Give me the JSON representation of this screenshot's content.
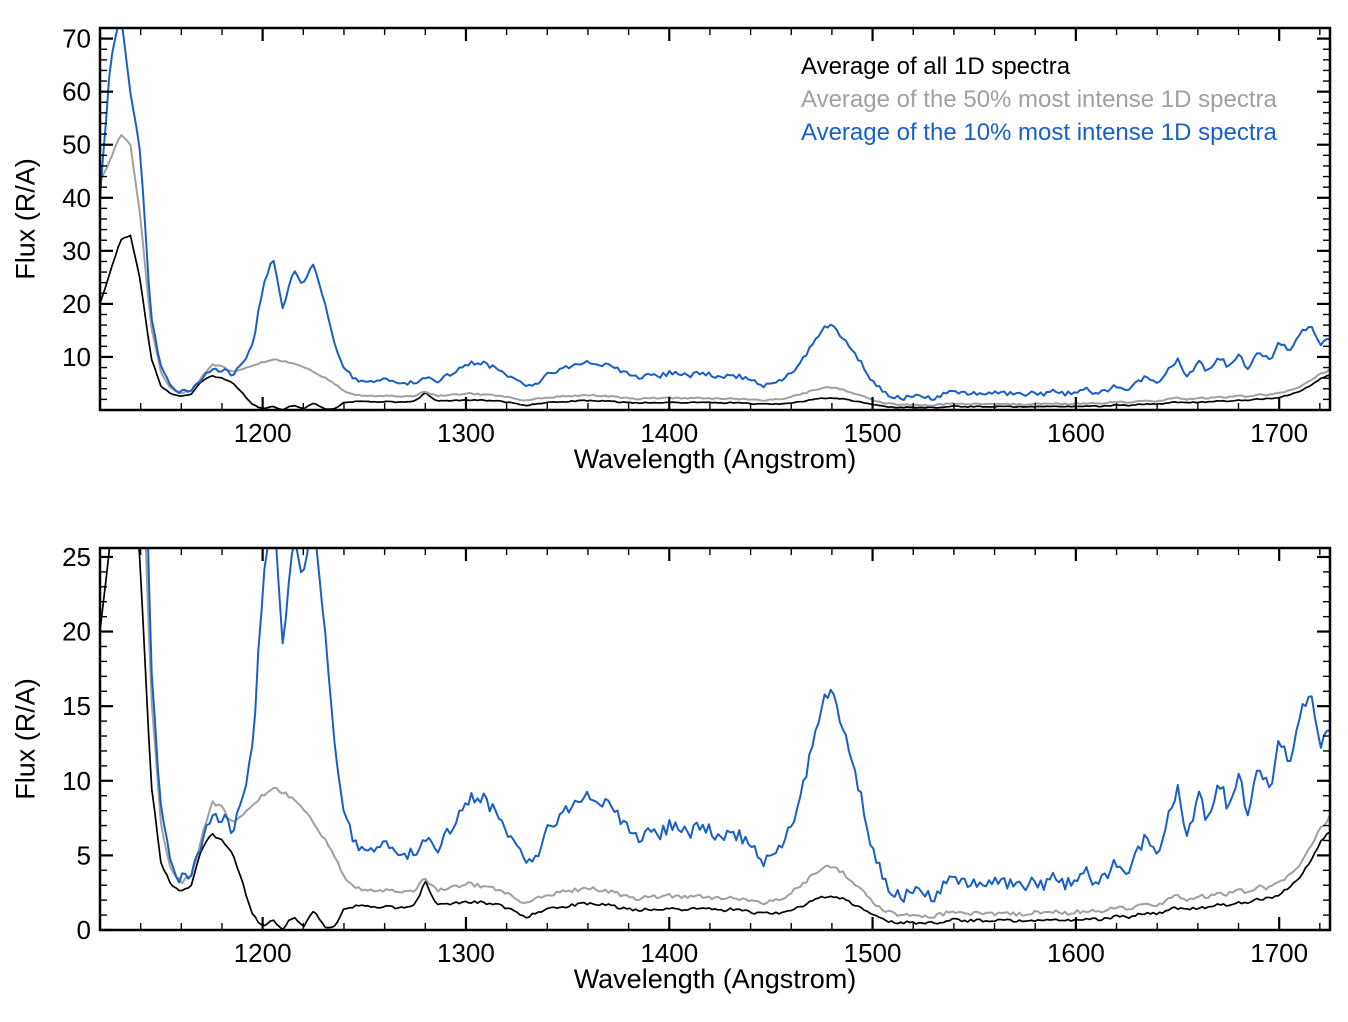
{
  "chart_data": {
    "type": "line",
    "title": "",
    "xlabel": "Wavelength (Angstrom)",
    "ylabel": "Flux (R/A)",
    "legend_position": "top-right",
    "grid": false,
    "x": [
      1120,
      1125,
      1130,
      1135,
      1140,
      1145,
      1150,
      1155,
      1160,
      1165,
      1170,
      1175,
      1180,
      1185,
      1190,
      1195,
      1200,
      1205,
      1210,
      1215,
      1220,
      1225,
      1230,
      1235,
      1240,
      1245,
      1250,
      1255,
      1260,
      1265,
      1270,
      1275,
      1280,
      1285,
      1290,
      1295,
      1300,
      1305,
      1310,
      1315,
      1320,
      1325,
      1330,
      1335,
      1340,
      1345,
      1350,
      1355,
      1360,
      1365,
      1370,
      1375,
      1380,
      1385,
      1390,
      1395,
      1400,
      1405,
      1410,
      1415,
      1420,
      1425,
      1430,
      1435,
      1440,
      1445,
      1450,
      1455,
      1460,
      1465,
      1470,
      1475,
      1480,
      1485,
      1490,
      1495,
      1500,
      1505,
      1510,
      1515,
      1520,
      1525,
      1530,
      1535,
      1540,
      1545,
      1550,
      1555,
      1560,
      1565,
      1570,
      1575,
      1580,
      1585,
      1590,
      1595,
      1600,
      1605,
      1610,
      1615,
      1620,
      1625,
      1630,
      1635,
      1640,
      1645,
      1650,
      1655,
      1660,
      1665,
      1670,
      1675,
      1680,
      1685,
      1690,
      1695,
      1700,
      1705,
      1710,
      1715,
      1720,
      1725
    ],
    "series": [
      {
        "key": "avg-all",
        "name": "Average of all 1D spectra",
        "color": "#000000",
        "noise": 0.1,
        "values": [
          20,
          26,
          32,
          33,
          24,
          10,
          4.5,
          3,
          2.6,
          3,
          5.5,
          6.4,
          6.1,
          5.2,
          3.2,
          1,
          0.3,
          0.6,
          0.1,
          0.9,
          0.2,
          1.3,
          0.3,
          0.1,
          1.4,
          1.6,
          1.6,
          1.5,
          1.6,
          1.5,
          1.5,
          1.7,
          3.3,
          1.8,
          1.7,
          1.8,
          1.9,
          1.9,
          1.8,
          1.7,
          1.5,
          1.2,
          0.8,
          1.2,
          1.4,
          1.5,
          1.6,
          1.7,
          1.8,
          1.7,
          1.7,
          1.5,
          1.4,
          1.3,
          1.4,
          1.4,
          1.5,
          1.4,
          1.4,
          1.5,
          1.4,
          1.3,
          1.4,
          1.3,
          1.2,
          1.1,
          1.1,
          1.2,
          1.4,
          1.6,
          1.9,
          2.2,
          2.3,
          2.1,
          1.8,
          1.4,
          1,
          0.7,
          0.55,
          0.5,
          0.5,
          0.5,
          0.45,
          0.6,
          0.7,
          0.6,
          0.65,
          0.6,
          0.6,
          0.65,
          0.6,
          0.6,
          0.65,
          0.6,
          0.7,
          0.6,
          0.7,
          0.75,
          0.7,
          0.75,
          0.9,
          0.85,
          1,
          1.1,
          1.05,
          1.3,
          1.5,
          1.35,
          1.5,
          1.45,
          1.7,
          1.65,
          1.9,
          1.8,
          2.1,
          2.1,
          2.4,
          2.8,
          3.5,
          4.5,
          5.8,
          6.6
        ]
      },
      {
        "key": "avg-50",
        "name": "Average of the 50% most intense 1D spectra",
        "color": "#a0a0a0",
        "noise": 0.13,
        "values": [
          43,
          47,
          52,
          50,
          36,
          16,
          7,
          4,
          3.2,
          3.6,
          6.2,
          8.6,
          8.2,
          7.2,
          7.6,
          8.4,
          9,
          9.6,
          9.2,
          8.8,
          8.2,
          7.2,
          6.2,
          5,
          3.6,
          2.9,
          2.7,
          2.6,
          2.7,
          2.6,
          2.5,
          2.7,
          3.5,
          2.7,
          2.7,
          2.9,
          3.1,
          3,
          2.9,
          2.7,
          2.5,
          2.1,
          1.8,
          2.1,
          2.3,
          2.5,
          2.6,
          2.7,
          2.8,
          2.7,
          2.6,
          2.4,
          2.2,
          2.1,
          2.2,
          2.2,
          2.3,
          2.2,
          2.2,
          2.3,
          2.2,
          2.1,
          2.2,
          2.1,
          2,
          1.8,
          1.9,
          2.1,
          2.5,
          3,
          3.6,
          4.2,
          4.3,
          3.9,
          3.3,
          2.6,
          1.9,
          1.4,
          1.1,
          1,
          1.05,
          0.95,
          0.9,
          1.1,
          1.2,
          1.1,
          1.15,
          1.05,
          1.1,
          1.15,
          1.05,
          1.1,
          1.15,
          1.1,
          1.2,
          1.1,
          1.2,
          1.3,
          1.2,
          1.3,
          1.5,
          1.4,
          1.6,
          1.8,
          1.7,
          2,
          2.3,
          2,
          2.3,
          2.2,
          2.5,
          2.4,
          2.7,
          2.5,
          2.9,
          2.8,
          3.2,
          3.6,
          4.3,
          5.4,
          6.8,
          7.6
        ]
      },
      {
        "key": "avg-10",
        "name": "Average of the 10% most intense 1D spectra",
        "color": "#1a5fc4",
        "noise": 0.45,
        "values": [
          40,
          65,
          75,
          60,
          48,
          18,
          8,
          4.5,
          3.4,
          3.6,
          6,
          8,
          7.5,
          6.8,
          8.5,
          12,
          23,
          29,
          18.5,
          26.5,
          23.5,
          27.5,
          21,
          13,
          8,
          5.8,
          5.5,
          5.2,
          5.6,
          5.2,
          4.8,
          5.2,
          6.2,
          5.2,
          6.4,
          7.4,
          8.6,
          9,
          8.6,
          7.8,
          6.8,
          5.6,
          4.4,
          5.2,
          6.6,
          7.4,
          8,
          8.4,
          9,
          8.6,
          8.4,
          7.6,
          6.6,
          6.2,
          6.6,
          6.4,
          7,
          6.6,
          6.4,
          7,
          6.6,
          6.2,
          6.6,
          6.2,
          5.6,
          4.6,
          5,
          5.6,
          7,
          9.2,
          12,
          15.2,
          15.8,
          14,
          11.5,
          8.5,
          5.2,
          3.6,
          2.6,
          2.3,
          2.6,
          2.3,
          2.1,
          3,
          3.6,
          3,
          3.3,
          2.8,
          3.1,
          3.3,
          2.8,
          3,
          3.3,
          3,
          3.6,
          3,
          3.3,
          3.9,
          3.2,
          3.6,
          4.6,
          4,
          5.2,
          6.2,
          5,
          7.6,
          9.6,
          6.2,
          9.2,
          7.2,
          10.2,
          8.2,
          10.6,
          7.6,
          11.2,
          9.2,
          12.6,
          11.2,
          14.2,
          16,
          12.4,
          13.5
        ]
      }
    ],
    "panels": [
      {
        "name": "full-scale",
        "xlim": [
          1120,
          1725
        ],
        "ylim": [
          0,
          72
        ],
        "xticks": [
          1200,
          1300,
          1400,
          1500,
          1600,
          1700
        ],
        "yticks": [
          10,
          20,
          30,
          40,
          50,
          60,
          70
        ],
        "x_minor_step": 20,
        "y_minor_step": 2,
        "legend": true
      },
      {
        "name": "zoomed",
        "xlim": [
          1120,
          1725
        ],
        "ylim": [
          0,
          25.6
        ],
        "xticks": [
          1200,
          1300,
          1400,
          1500,
          1600,
          1700
        ],
        "yticks": [
          0,
          5,
          10,
          15,
          20,
          25
        ],
        "x_minor_step": 20,
        "y_minor_step": 1,
        "legend": false
      }
    ]
  }
}
